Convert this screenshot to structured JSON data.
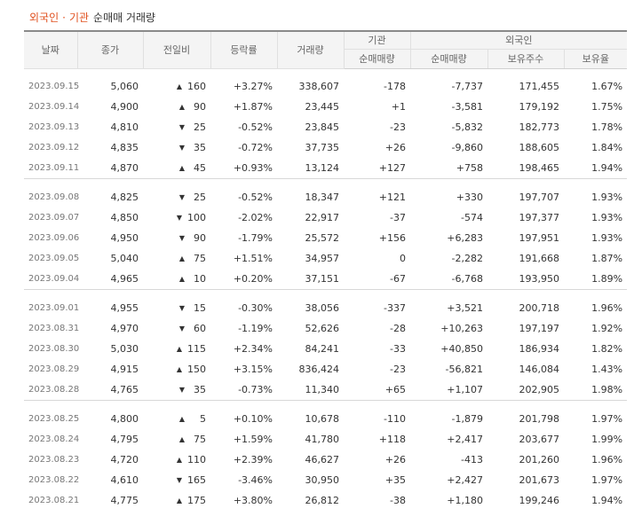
{
  "caption": {
    "part1": "외국인",
    "dot": "·",
    "part2": "기관",
    "part3": "순매매 거래량"
  },
  "headers": {
    "date": "날짜",
    "close": "종가",
    "change": "전일비",
    "rate": "등락률",
    "volume": "거래량",
    "institution": "기관",
    "foreigner": "외국인",
    "inst_net": "순매매량",
    "foreign_net": "순매매량",
    "foreign_hold": "보유주수",
    "foreign_ratio": "보유율"
  },
  "colors": {
    "up": "#d5001c",
    "down": "#1b57c4",
    "accent": "#e0501f"
  },
  "groups": [
    [
      {
        "date": "2023.09.15",
        "close": "5,060",
        "dir": "up",
        "change": "160",
        "rate": "+3.27%",
        "volume": "338,607",
        "inst": "-178",
        "foreign": "-7,737",
        "hold": "171,455",
        "ratio": "1.67%"
      },
      {
        "date": "2023.09.14",
        "close": "4,900",
        "dir": "up",
        "change": "90",
        "rate": "+1.87%",
        "volume": "23,445",
        "inst": "+1",
        "foreign": "-3,581",
        "hold": "179,192",
        "ratio": "1.75%"
      },
      {
        "date": "2023.09.13",
        "close": "4,810",
        "dir": "down",
        "change": "25",
        "rate": "-0.52%",
        "volume": "23,845",
        "inst": "-23",
        "foreign": "-5,832",
        "hold": "182,773",
        "ratio": "1.78%"
      },
      {
        "date": "2023.09.12",
        "close": "4,835",
        "dir": "down",
        "change": "35",
        "rate": "-0.72%",
        "volume": "37,735",
        "inst": "+26",
        "foreign": "-9,860",
        "hold": "188,605",
        "ratio": "1.84%"
      },
      {
        "date": "2023.09.11",
        "close": "4,870",
        "dir": "up",
        "change": "45",
        "rate": "+0.93%",
        "volume": "13,124",
        "inst": "+127",
        "foreign": "+758",
        "hold": "198,465",
        "ratio": "1.94%"
      }
    ],
    [
      {
        "date": "2023.09.08",
        "close": "4,825",
        "dir": "down",
        "change": "25",
        "rate": "-0.52%",
        "volume": "18,347",
        "inst": "+121",
        "foreign": "+330",
        "hold": "197,707",
        "ratio": "1.93%"
      },
      {
        "date": "2023.09.07",
        "close": "4,850",
        "dir": "down",
        "change": "100",
        "rate": "-2.02%",
        "volume": "22,917",
        "inst": "-37",
        "foreign": "-574",
        "hold": "197,377",
        "ratio": "1.93%"
      },
      {
        "date": "2023.09.06",
        "close": "4,950",
        "dir": "down",
        "change": "90",
        "rate": "-1.79%",
        "volume": "25,572",
        "inst": "+156",
        "foreign": "+6,283",
        "hold": "197,951",
        "ratio": "1.93%"
      },
      {
        "date": "2023.09.05",
        "close": "5,040",
        "dir": "up",
        "change": "75",
        "rate": "+1.51%",
        "volume": "34,957",
        "inst": "0",
        "foreign": "-2,282",
        "hold": "191,668",
        "ratio": "1.87%"
      },
      {
        "date": "2023.09.04",
        "close": "4,965",
        "dir": "up",
        "change": "10",
        "rate": "+0.20%",
        "volume": "37,151",
        "inst": "-67",
        "foreign": "-6,768",
        "hold": "193,950",
        "ratio": "1.89%"
      }
    ],
    [
      {
        "date": "2023.09.01",
        "close": "4,955",
        "dir": "down",
        "change": "15",
        "rate": "-0.30%",
        "volume": "38,056",
        "inst": "-337",
        "foreign": "+3,521",
        "hold": "200,718",
        "ratio": "1.96%"
      },
      {
        "date": "2023.08.31",
        "close": "4,970",
        "dir": "down",
        "change": "60",
        "rate": "-1.19%",
        "volume": "52,626",
        "inst": "-28",
        "foreign": "+10,263",
        "hold": "197,197",
        "ratio": "1.92%"
      },
      {
        "date": "2023.08.30",
        "close": "5,030",
        "dir": "up",
        "change": "115",
        "rate": "+2.34%",
        "volume": "84,241",
        "inst": "-33",
        "foreign": "+40,850",
        "hold": "186,934",
        "ratio": "1.82%"
      },
      {
        "date": "2023.08.29",
        "close": "4,915",
        "dir": "up",
        "change": "150",
        "rate": "+3.15%",
        "volume": "836,424",
        "inst": "-23",
        "foreign": "-56,821",
        "hold": "146,084",
        "ratio": "1.43%"
      },
      {
        "date": "2023.08.28",
        "close": "4,765",
        "dir": "down",
        "change": "35",
        "rate": "-0.73%",
        "volume": "11,340",
        "inst": "+65",
        "foreign": "+1,107",
        "hold": "202,905",
        "ratio": "1.98%"
      }
    ],
    [
      {
        "date": "2023.08.25",
        "close": "4,800",
        "dir": "up",
        "change": "5",
        "rate": "+0.10%",
        "volume": "10,678",
        "inst": "-110",
        "foreign": "-1,879",
        "hold": "201,798",
        "ratio": "1.97%"
      },
      {
        "date": "2023.08.24",
        "close": "4,795",
        "dir": "up",
        "change": "75",
        "rate": "+1.59%",
        "volume": "41,780",
        "inst": "+118",
        "foreign": "+2,417",
        "hold": "203,677",
        "ratio": "1.99%"
      },
      {
        "date": "2023.08.23",
        "close": "4,720",
        "dir": "up",
        "change": "110",
        "rate": "+2.39%",
        "volume": "46,627",
        "inst": "+26",
        "foreign": "-413",
        "hold": "201,260",
        "ratio": "1.96%"
      },
      {
        "date": "2023.08.22",
        "close": "4,610",
        "dir": "down",
        "change": "165",
        "rate": "-3.46%",
        "volume": "30,950",
        "inst": "+35",
        "foreign": "+2,427",
        "hold": "201,673",
        "ratio": "1.97%"
      },
      {
        "date": "2023.08.21",
        "close": "4,775",
        "dir": "up",
        "change": "175",
        "rate": "+3.80%",
        "volume": "26,812",
        "inst": "-38",
        "foreign": "+1,180",
        "hold": "199,246",
        "ratio": "1.94%"
      }
    ]
  ]
}
